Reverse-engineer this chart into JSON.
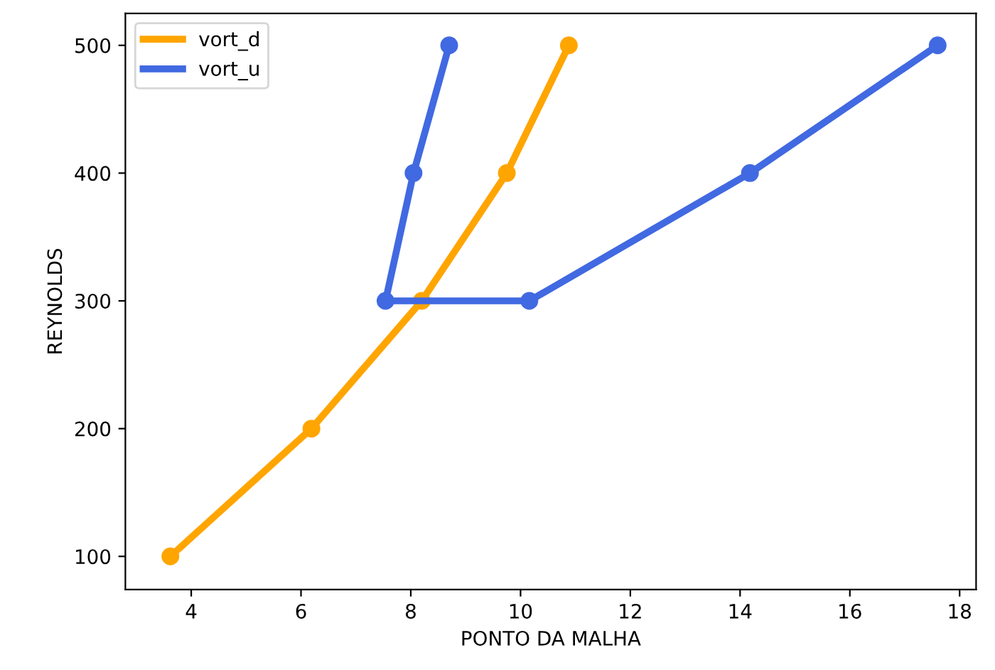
{
  "chart_data": {
    "type": "line",
    "xlabel": "PONTO DA MALHA",
    "ylabel": "REYNOLDS",
    "xlim": [
      2.8,
      18.3
    ],
    "xticks": [
      4,
      6,
      8,
      10,
      12,
      14,
      16,
      18
    ],
    "ylim": [
      74,
      525
    ],
    "yticks": [
      100,
      200,
      300,
      400,
      500
    ],
    "grid": false,
    "legend": "top left",
    "marker": "circle",
    "line_style": "solid",
    "series": [
      {
        "name": "vort_d",
        "color": "#ffa500",
        "x": [
          3.62,
          6.19,
          8.2,
          9.75,
          10.88
        ],
        "values": [
          100,
          200,
          300,
          400,
          500
        ]
      },
      {
        "name": "vort_u",
        "color": "#4169e1",
        "x": [
          8.7,
          8.05,
          7.54,
          10.16,
          14.18,
          17.6
        ],
        "values": [
          500,
          400,
          300,
          300,
          400,
          500
        ]
      }
    ]
  }
}
